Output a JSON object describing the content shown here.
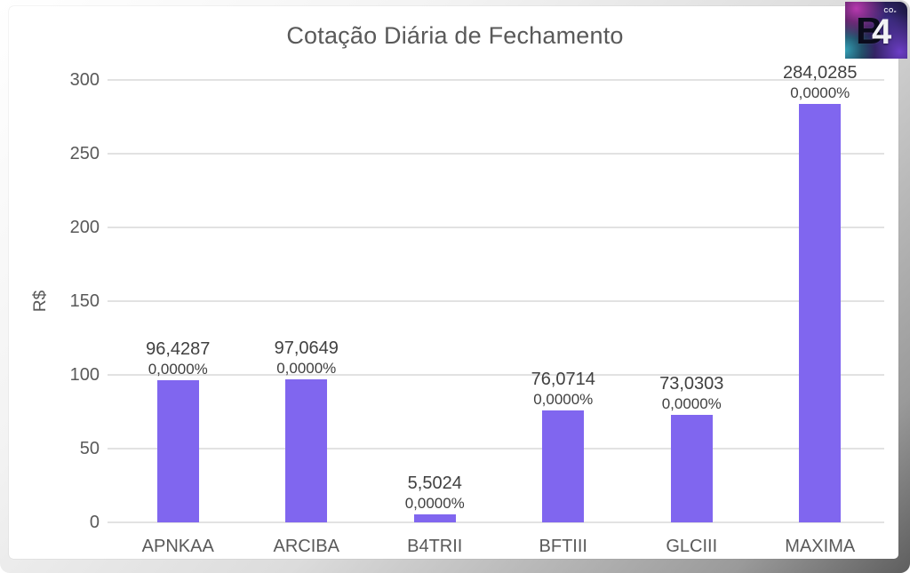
{
  "chart_data": {
    "type": "bar",
    "title": "Cotação Diária de Fechamento",
    "ylabel": "R$",
    "xlabel": "",
    "categories": [
      "APNKAA",
      "ARCIBA",
      "B4TRII",
      "BFTIII",
      "GLCIII",
      "MAXIMA"
    ],
    "values": [
      96.4287,
      97.0649,
      5.5024,
      76.0714,
      73.0303,
      284.0285
    ],
    "value_labels": [
      "96,4287",
      "97,0649",
      "5,5024",
      "76,0714",
      "73,0303",
      "284,0285"
    ],
    "percent_labels": [
      "0,0000%",
      "0,0000%",
      "0,0000%",
      "0,0000%",
      "0,0000%",
      "0,0000%"
    ],
    "yticks": [
      0,
      50,
      100,
      150,
      200,
      250,
      300
    ],
    "ytick_labels": [
      "0",
      "50",
      "100",
      "150",
      "200",
      "250",
      "300"
    ],
    "ylim": [
      0,
      300
    ],
    "grid": true,
    "legend": false,
    "bar_color": "#8066EF"
  },
  "logo": {
    "letter_b": "B",
    "digit": "4",
    "co2": "CO₂"
  },
  "colors": {
    "bar": "#8066EF",
    "gridline": "#E2E2E2",
    "title_text": "#595959",
    "axis_text": "#595959",
    "data_label_text": "#404040",
    "background": "#FFFFFF"
  }
}
